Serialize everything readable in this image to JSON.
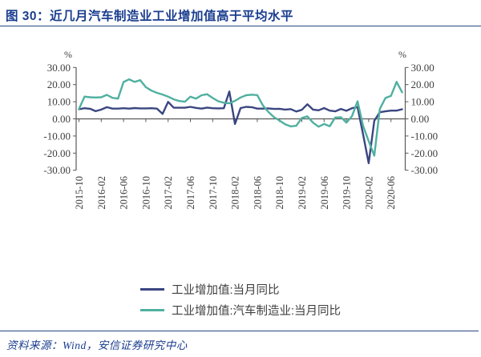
{
  "header": {
    "title": "图 30：近几月汽车制造业工业增加值高于平均水平"
  },
  "footer": {
    "source": "资料来源：Wind，安信证券研究中心"
  },
  "colors": {
    "accent_navy": "#1a3d8f",
    "axis_text": "#404040",
    "axis_line": "#595959",
    "series_industrial": "#3a4680",
    "series_auto": "#4fb0a0"
  },
  "chart_data": {
    "type": "line",
    "title": "",
    "unit_left": "%",
    "unit_right": "%",
    "ylim": [
      -30,
      30
    ],
    "y_ticks": [
      30,
      20,
      10,
      0,
      -10,
      -20,
      -30
    ],
    "grid": false,
    "legend_position": "bottom",
    "x": [
      "2015-10",
      "2015-11",
      "2015-12",
      "2016-01",
      "2016-02",
      "2016-03",
      "2016-04",
      "2016-05",
      "2016-06",
      "2016-07",
      "2016-08",
      "2016-09",
      "2016-10",
      "2016-11",
      "2016-12",
      "2017-01",
      "2017-02",
      "2017-03",
      "2017-04",
      "2017-05",
      "2017-06",
      "2017-07",
      "2017-08",
      "2017-09",
      "2017-10",
      "2017-11",
      "2017-12",
      "2018-01",
      "2018-02",
      "2018-03",
      "2018-04",
      "2018-05",
      "2018-06",
      "2018-07",
      "2018-08",
      "2018-09",
      "2018-10",
      "2018-11",
      "2018-12",
      "2019-01",
      "2019-02",
      "2019-03",
      "2019-04",
      "2019-05",
      "2019-06",
      "2019-07",
      "2019-08",
      "2019-09",
      "2019-10",
      "2019-11",
      "2019-12",
      "2020-01",
      "2020-02",
      "2020-03",
      "2020-04",
      "2020-05",
      "2020-06",
      "2020-07",
      "2020-08"
    ],
    "x_tick_labels": [
      "2015-10",
      "2016-02",
      "2016-06",
      "2016-10",
      "2017-02",
      "2017-06",
      "2017-10",
      "2018-02",
      "2018-06",
      "2018-10",
      "2019-02",
      "2019-06",
      "2019-10",
      "2020-02",
      "2020-06"
    ],
    "x_tick_every": 4,
    "series": [
      {
        "name": "工业增加值:当月同比",
        "color": "#3a4680",
        "values": [
          5.6,
          6.2,
          5.9,
          4.5,
          5.4,
          6.8,
          6.0,
          6.0,
          6.2,
          6.0,
          6.3,
          6.1,
          6.1,
          6.2,
          6.0,
          2.9,
          9.9,
          6.5,
          6.5,
          6.5,
          7.0,
          6.4,
          6.0,
          6.6,
          6.2,
          6.1,
          6.2,
          16.0,
          -3.0,
          6.3,
          7.0,
          6.8,
          6.0,
          6.0,
          6.1,
          5.8,
          5.9,
          5.4,
          5.7,
          4.3,
          5.3,
          8.5,
          5.4,
          5.0,
          6.3,
          4.8,
          4.4,
          5.8,
          4.7,
          6.2,
          6.9,
          -9.0,
          -25.9,
          -1.1,
          3.9,
          4.4,
          4.8,
          4.8,
          5.6
        ]
      },
      {
        "name": "工业增加值:汽车制造业:当月同比",
        "color": "#4fb0a0",
        "values": [
          5.8,
          13.0,
          12.6,
          12.5,
          12.6,
          14.0,
          12.3,
          11.8,
          21.5,
          23.1,
          21.6,
          22.6,
          18.5,
          16.5,
          15.2,
          14.2,
          13.0,
          11.4,
          10.4,
          10.0,
          13.0,
          11.8,
          13.8,
          14.4,
          12.2,
          10.3,
          9.4,
          9.1,
          10.5,
          12.5,
          13.8,
          14.1,
          13.9,
          7.9,
          4.0,
          1.0,
          -1.0,
          -3.2,
          -4.4,
          -4.0,
          0.5,
          1.5,
          -2.2,
          -4.6,
          -3.0,
          -4.3,
          0.8,
          1.0,
          -2.2,
          1.6,
          10.3,
          -4.0,
          -13.0,
          -21.5,
          5.8,
          12.2,
          13.4,
          21.6,
          15.5
        ]
      }
    ]
  }
}
